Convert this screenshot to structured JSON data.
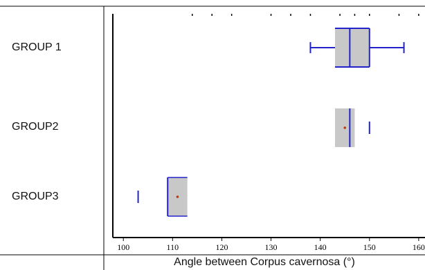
{
  "chart_data": {
    "type": "box",
    "orientation": "horizontal",
    "xlabel": "Angle between Corpus cavernosa (°)",
    "xlim": [
      98,
      161
    ],
    "xticks": [
      100,
      110,
      120,
      130,
      140,
      150,
      160
    ],
    "grid": false,
    "legend": "none",
    "colors": {
      "box_fill": "#c8c8c8",
      "median_whisker": "#2222cc",
      "mean_marker": "#cc3300",
      "axis": "#000000"
    },
    "groups": [
      {
        "name": "GROUP 1",
        "whisker_low": 138,
        "q1": 143,
        "median": 146,
        "q3": 150,
        "whisker_high": 157,
        "mean": null,
        "outliers": []
      },
      {
        "name": "GROUP2",
        "whisker_low": null,
        "q1": 143,
        "median": 146,
        "q3": 147,
        "whisker_high": null,
        "mean": 145,
        "outliers": [
          150
        ]
      },
      {
        "name": "GROUP3",
        "whisker_low": null,
        "q1": 109,
        "median": 109,
        "q3": 113,
        "whisker_high": null,
        "mean": 111,
        "outliers": [
          103
        ]
      }
    ]
  }
}
